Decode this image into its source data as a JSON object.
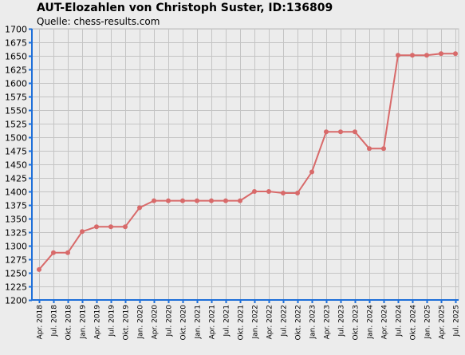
{
  "title": "AUT-Elozahlen von Christoph Suster, ID:136809",
  "source": "Quelle: chess-results.com",
  "colors": {
    "background": "#ececec",
    "grid": "#c4c4c4",
    "axis": "#1e6fd9",
    "line": "#d86a6a",
    "marker": "#d86a6a"
  },
  "chart_data": {
    "type": "line",
    "title": "AUT-Elozahlen von Christoph Suster, ID:136809",
    "subtitle": "Quelle: chess-results.com",
    "xlabel": "",
    "ylabel": "",
    "ylim": [
      1200,
      1700
    ],
    "yticks": [
      1200,
      1225,
      1250,
      1275,
      1300,
      1325,
      1350,
      1375,
      1400,
      1425,
      1450,
      1475,
      1500,
      1525,
      1550,
      1575,
      1600,
      1625,
      1650,
      1675,
      1700
    ],
    "grid": true,
    "legend": "none",
    "categories": [
      "Apr. 2018",
      "Jul. 2018",
      "Okt. 2018",
      "Jan. 2019",
      "Apr. 2019",
      "Jul. 2019",
      "Okt. 2019",
      "Jan. 2020",
      "Apr. 2020",
      "Jul. 2020",
      "Okt. 2020",
      "Jan. 2021",
      "Apr. 2021",
      "Jul. 2021",
      "Okt. 2021",
      "Jan. 2022",
      "Apr. 2022",
      "Jul. 2022",
      "Okt. 2022",
      "Jan. 2023",
      "Apr. 2023",
      "Jul. 2023",
      "Okt. 2023",
      "Jan. 2024",
      "Apr. 2024",
      "Jul. 2024",
      "Okt. 2024",
      "Jan. 2025",
      "Apr. 2025",
      "Jul. 2025"
    ],
    "series": [
      {
        "values": [
          1256,
          1287,
          1287,
          1326,
          1335,
          1335,
          1335,
          1370,
          1383,
          1383,
          1383,
          1383,
          1383,
          1383,
          1383,
          1400,
          1400,
          1397,
          1397,
          1436,
          1510,
          1510,
          1510,
          1479,
          1479,
          1651,
          1651,
          1651,
          1654,
          1654
        ]
      }
    ]
  }
}
